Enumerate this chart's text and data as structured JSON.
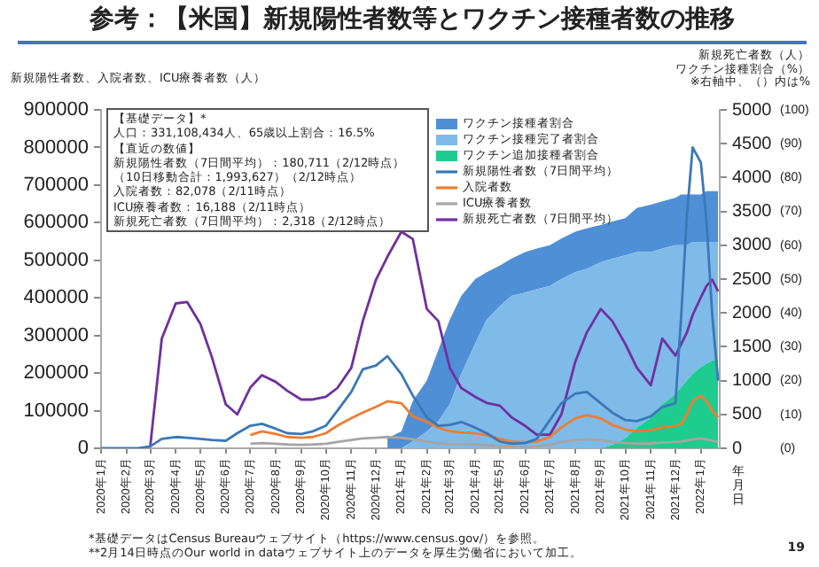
{
  "chart_data": {
    "type": "line",
    "title": "参考：【米国】新規陽性者数等とワクチン接種者数の推移",
    "ylabel": "新規陽性者数、入院者数、ICU療養者数（人）",
    "y2label": "新規死亡者数（人）",
    "y3label": "ワクチン接種割合（%）",
    "xlabel": "年月日",
    "annotations": [
      "【基礎データ】*",
      "人口：331,108,434人、65歳以上割合：16.5%",
      "【直近の数値】",
      "新規陽性者数（7日間平均）：180,711（2/12時点）",
      "（10日移動合計：1,993,627）（2/12時点）",
      "入院者数：82,078（2/11時点）",
      "ICU療養者数：16,188（2/11時点）",
      "新規死亡者数（7日間平均）：2,318（2/12時点）",
      "※右軸中、（）内は%",
      "*基礎データはCensus Bureauウェブサイト（https://www.census.gov/）を参照。",
      "**2月14日時点のOur world in dataウェブサイト上のデータを厚生労働省において加工。",
      "19"
    ],
    "x": [
      "2020-01-01",
      "2020-01-15",
      "2020-02-01",
      "2020-02-15",
      "2020-03-01",
      "2020-03-15",
      "2020-04-01",
      "2020-04-15",
      "2020-05-01",
      "2020-05-15",
      "2020-06-01",
      "2020-06-15",
      "2020-07-01",
      "2020-07-15",
      "2020-08-01",
      "2020-08-15",
      "2020-09-01",
      "2020-09-15",
      "2020-10-01",
      "2020-10-15",
      "2020-11-01",
      "2020-11-15",
      "2020-12-01",
      "2020-12-15",
      "2021-01-01",
      "2021-01-15",
      "2021-02-01",
      "2021-02-15",
      "2021-03-01",
      "2021-03-15",
      "2021-04-01",
      "2021-04-15",
      "2021-05-01",
      "2021-05-15",
      "2021-06-01",
      "2021-06-15",
      "2021-07-01",
      "2021-07-15",
      "2021-08-01",
      "2021-08-15",
      "2021-09-01",
      "2021-09-15",
      "2021-10-01",
      "2021-10-15",
      "2021-11-01",
      "2021-11-15",
      "2021-12-01",
      "2021-12-08",
      "2021-12-15",
      "2021-12-22",
      "2022-01-01",
      "2022-01-08",
      "2022-01-15",
      "2022-01-22"
    ],
    "xlim": [
      "2020-01-01",
      "2022-01-24"
    ],
    "xticks": [
      {
        "value": "2020-01",
        "label": "2020年1月"
      },
      {
        "value": "2020-02",
        "label": "2020年2月"
      },
      {
        "value": "2020-03",
        "label": "2020年3月"
      },
      {
        "value": "2020-04",
        "label": "2020年4月"
      },
      {
        "value": "2020-05",
        "label": "2020年5月"
      },
      {
        "value": "2020-06",
        "label": "2020年6月"
      },
      {
        "value": "2020-07",
        "label": "2020年7月"
      },
      {
        "value": "2020-08",
        "label": "2020年8月"
      },
      {
        "value": "2020-09",
        "label": "2020年9月"
      },
      {
        "value": "2020-10",
        "label": "2020年10月"
      },
      {
        "value": "2020-11",
        "label": "2020年11月"
      },
      {
        "value": "2020-12",
        "label": "2020年12月"
      },
      {
        "value": "2021-01",
        "label": "2021年1月"
      },
      {
        "value": "2021-02",
        "label": "2021年2月"
      },
      {
        "value": "2021-03",
        "label": "2021年3月"
      },
      {
        "value": "2021-04",
        "label": "2021年4月"
      },
      {
        "value": "2021-05",
        "label": "2021年5月"
      },
      {
        "value": "2021-06",
        "label": "2021年6月"
      },
      {
        "value": "2021-07",
        "label": "2021年7月"
      },
      {
        "value": "2021-08",
        "label": "2021年8月"
      },
      {
        "value": "2021-09",
        "label": "2021年9月"
      },
      {
        "value": "2021-10",
        "label": "2021年10月"
      },
      {
        "value": "2021-11",
        "label": "2021年11月"
      },
      {
        "value": "2021-12",
        "label": "2021年12月"
      },
      {
        "value": "2022-01",
        "label": "2022年1月"
      }
    ],
    "ylim": [
      0,
      900000
    ],
    "yticks": [
      0,
      100000,
      200000,
      300000,
      400000,
      500000,
      600000,
      700000,
      800000,
      900000
    ],
    "y2lim": [
      0,
      5000
    ],
    "y2ticks": [
      0,
      500,
      1000,
      1500,
      2000,
      2500,
      3000,
      3500,
      4000,
      4500,
      5000
    ],
    "y3lim": [
      0,
      100
    ],
    "y3ticks": [
      {
        "value": 0,
        "label": "(0)"
      },
      {
        "value": 10,
        "label": "(10)"
      },
      {
        "value": 20,
        "label": "(20)"
      },
      {
        "value": 30,
        "label": "(30)"
      },
      {
        "value": 40,
        "label": "(40)"
      },
      {
        "value": 50,
        "label": "(50)"
      },
      {
        "value": 60,
        "label": "(60)"
      },
      {
        "value": 70,
        "label": "(70)"
      },
      {
        "value": 80,
        "label": "(80)"
      },
      {
        "value": 90,
        "label": "(90)"
      },
      {
        "value": 100,
        "label": "(100)"
      }
    ],
    "legend": "top right",
    "marker": "none",
    "line_style": "solid",
    "series": [
      {
        "name": "新規陽性者数（7日間平均）",
        "color": "#3a78b8",
        "values": [
          0,
          0,
          0,
          0,
          5000,
          25000,
          30000,
          28000,
          25000,
          22000,
          20000,
          40000,
          60000,
          65000,
          52000,
          40000,
          38000,
          45000,
          60000,
          100000,
          150000,
          210000,
          220000,
          245000,
          197000,
          140000,
          82000,
          60000,
          62000,
          70000,
          55000,
          40000,
          18000,
          12000,
          14000,
          25000,
          75000,
          120000,
          145000,
          150000,
          120000,
          95000,
          75000,
          72000,
          85000,
          110000,
          120000,
          350000,
          620000,
          800000,
          760000,
          600000,
          350000,
          180000
        ]
      },
      {
        "name": "入院者数",
        "color": "#ed7d31",
        "values": [
          null,
          null,
          null,
          null,
          null,
          null,
          null,
          null,
          null,
          null,
          null,
          null,
          35000,
          45000,
          38000,
          30000,
          28000,
          30000,
          40000,
          60000,
          80000,
          95000,
          110000,
          125000,
          120000,
          85000,
          70000,
          55000,
          45000,
          42000,
          40000,
          35000,
          25000,
          18000,
          16000,
          18000,
          30000,
          55000,
          80000,
          88000,
          80000,
          62000,
          50000,
          45000,
          48000,
          55000,
          60000,
          65000,
          90000,
          125000,
          140000,
          125000,
          100000,
          82000
        ]
      },
      {
        "name": "ICU療養者数",
        "color": "#a5a5a5",
        "values": [
          null,
          null,
          null,
          null,
          null,
          null,
          null,
          null,
          null,
          null,
          null,
          null,
          12000,
          14000,
          12000,
          10000,
          9000,
          10000,
          12000,
          17000,
          22000,
          26000,
          28000,
          30000,
          28000,
          24000,
          18000,
          13000,
          11000,
          11000,
          10000,
          8000,
          6000,
          5000,
          4000,
          5000,
          9000,
          16000,
          22000,
          24000,
          22000,
          17000,
          14000,
          12000,
          13000,
          15000,
          17000,
          18000,
          21000,
          24000,
          26000,
          24000,
          20000,
          16000
        ]
      },
      {
        "name": "新規死亡者数（7日間平均）",
        "axis": "y2",
        "color": "#7030a0",
        "values": [
          null,
          null,
          null,
          null,
          30,
          1620,
          2140,
          2160,
          1840,
          1350,
          650,
          500,
          900,
          1080,
          980,
          850,
          720,
          720,
          760,
          890,
          1190,
          1880,
          2490,
          2830,
          3200,
          3090,
          2060,
          1880,
          1190,
          890,
          760,
          670,
          630,
          460,
          330,
          200,
          200,
          500,
          1280,
          1710,
          2060,
          1880,
          1540,
          1190,
          930,
          1620,
          1370,
          1540,
          1710,
          1970,
          2230,
          2400,
          2490,
          2320
        ]
      },
      {
        "name": "ワクチン追加接種者割合",
        "type": "area",
        "axis": "y3",
        "color": "#1fcc8f",
        "values": [
          null,
          null,
          null,
          null,
          null,
          null,
          null,
          null,
          null,
          null,
          null,
          null,
          null,
          null,
          null,
          null,
          null,
          null,
          null,
          null,
          null,
          null,
          null,
          0,
          0,
          0,
          0,
          0,
          0,
          0,
          0,
          0,
          0,
          0,
          0,
          0,
          0,
          0,
          0,
          0,
          0,
          1,
          3,
          6,
          9,
          13,
          16,
          18,
          20,
          22,
          24,
          25,
          26,
          26
        ]
      },
      {
        "name": "ワクチン接種完了者割合",
        "type": "area",
        "axis": "y3",
        "color": "#7fbbe8",
        "values": [
          null,
          null,
          null,
          null,
          null,
          null,
          null,
          null,
          null,
          null,
          null,
          null,
          null,
          null,
          null,
          null,
          null,
          null,
          null,
          null,
          null,
          null,
          null,
          0,
          0,
          2,
          5,
          8,
          13,
          22,
          31,
          38,
          42,
          45,
          46,
          47,
          48,
          50,
          52,
          53,
          55,
          56,
          57,
          58,
          58,
          59,
          60,
          60,
          60,
          61,
          61,
          61,
          61,
          61
        ]
      },
      {
        "name": "ワクチン接種者割合",
        "type": "area",
        "axis": "y3",
        "color": "#4f8fd6",
        "values": [
          null,
          null,
          null,
          null,
          null,
          null,
          null,
          null,
          null,
          null,
          null,
          null,
          null,
          null,
          null,
          null,
          null,
          null,
          null,
          null,
          null,
          null,
          null,
          3,
          5,
          14,
          20,
          29,
          38,
          45,
          50,
          52,
          54,
          56,
          58,
          59,
          60,
          62,
          64,
          65,
          66,
          67,
          68,
          71,
          72,
          73,
          74,
          75,
          75,
          75,
          75,
          76,
          76,
          76
        ]
      }
    ]
  }
}
